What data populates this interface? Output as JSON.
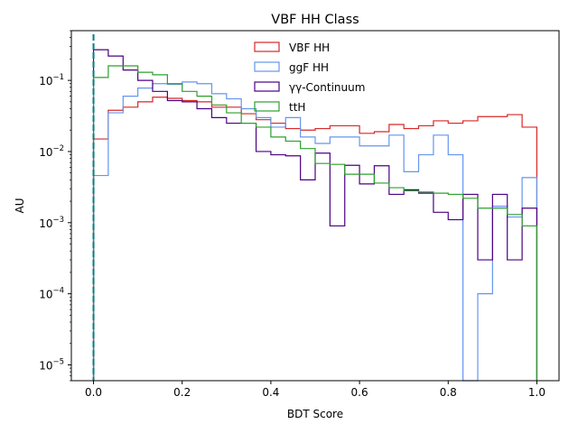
{
  "chart_data": {
    "type": "step-histogram",
    "title": "VBF HH Class",
    "xlabel": "BDT Score",
    "ylabel": "AU",
    "xlim": [
      -0.05,
      1.05
    ],
    "ylim": [
      6e-06,
      0.5
    ],
    "yscale": "log",
    "grid": false,
    "legend_position": "top-center",
    "x_ticks": [
      0.0,
      0.2,
      0.4,
      0.6,
      0.8,
      1.0
    ],
    "x_tick_labels": [
      "0.0",
      "0.2",
      "0.4",
      "0.6",
      "0.8",
      "1.0"
    ],
    "y_ticks": [
      1e-05,
      0.0001,
      0.001,
      0.01,
      0.1
    ],
    "y_tick_labels": [
      {
        "base": "10",
        "exp": "−5"
      },
      {
        "base": "10",
        "exp": "−4"
      },
      {
        "base": "10",
        "exp": "−3"
      },
      {
        "base": "10",
        "exp": "−2"
      },
      {
        "base": "10",
        "exp": "−1"
      }
    ],
    "bin_edges": [
      0.0,
      0.0333,
      0.0667,
      0.1,
      0.1333,
      0.1667,
      0.2,
      0.2333,
      0.2667,
      0.3,
      0.3333,
      0.3667,
      0.4,
      0.4333,
      0.4667,
      0.5,
      0.5333,
      0.5667,
      0.6,
      0.6333,
      0.6667,
      0.7,
      0.7333,
      0.7667,
      0.8,
      0.8333,
      0.8667,
      0.9,
      0.9333,
      0.9667,
      1.0
    ],
    "series": [
      {
        "name": "VBF HH",
        "color": "#d62728",
        "values": [
          0.015,
          0.038,
          0.042,
          0.05,
          0.058,
          0.056,
          0.052,
          0.05,
          0.042,
          0.042,
          0.034,
          0.028,
          0.025,
          0.021,
          0.02,
          0.021,
          0.023,
          0.023,
          0.018,
          0.019,
          0.024,
          0.021,
          0.023,
          0.027,
          0.025,
          0.027,
          0.031,
          0.031,
          0.033,
          0.022,
          0.0056
        ]
      },
      {
        "name": "ggF HH",
        "color": "#6495ed",
        "values": [
          0.0046,
          0.035,
          0.06,
          0.078,
          0.09,
          0.088,
          0.095,
          0.09,
          0.065,
          0.055,
          0.04,
          0.03,
          0.022,
          0.03,
          0.016,
          0.013,
          0.016,
          0.016,
          0.012,
          0.012,
          0.017,
          0.0052,
          0.009,
          0.017,
          0.009,
          1e-06,
          0.0001,
          0.0017,
          0.0012,
          0.0043,
          0.0003
        ]
      },
      {
        "name": "γγ-Continuum",
        "color": "#4b0082",
        "values": [
          0.27,
          0.22,
          0.14,
          0.1,
          0.07,
          0.052,
          0.05,
          0.04,
          0.03,
          0.025,
          0.025,
          0.01,
          0.009,
          0.0087,
          0.004,
          0.0095,
          0.0009,
          0.0064,
          0.0035,
          0.0063,
          0.0025,
          0.0029,
          0.0026,
          0.0014,
          0.0011,
          0.0025,
          0.0003,
          0.0025,
          0.0003,
          0.0016,
          0.0003
        ]
      },
      {
        "name": "ttH",
        "color": "#2ca02c",
        "values": [
          0.11,
          0.16,
          0.16,
          0.13,
          0.12,
          0.09,
          0.07,
          0.06,
          0.045,
          0.035,
          0.025,
          0.022,
          0.016,
          0.014,
          0.011,
          0.0068,
          0.0066,
          0.0048,
          0.0048,
          0.0036,
          0.0031,
          0.0028,
          0.0027,
          0.0026,
          0.0025,
          0.0022,
          0.0016,
          0.0016,
          0.0013,
          0.0009,
          1e-06
        ]
      }
    ],
    "vline": {
      "x": 0.0,
      "color": "#008080"
    }
  }
}
